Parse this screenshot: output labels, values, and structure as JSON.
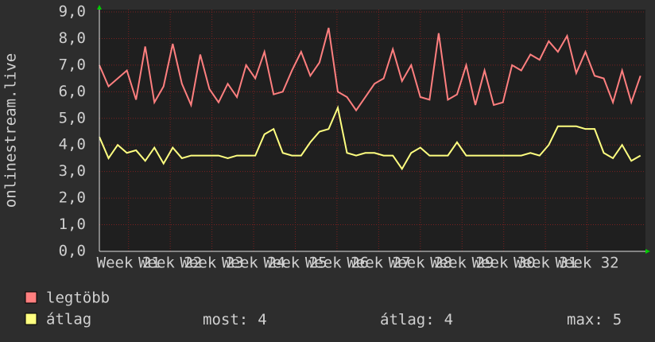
{
  "chart_data": {
    "type": "line",
    "y_label": "onlinestream.live",
    "xlim": [
      20.3,
      33.4
    ],
    "xticks": [
      {
        "value": 21,
        "label": "Week 21"
      },
      {
        "value": 22,
        "label": "Week 22"
      },
      {
        "value": 23,
        "label": "Week 23"
      },
      {
        "value": 24,
        "label": "Week 24"
      },
      {
        "value": 25,
        "label": "Week 25"
      },
      {
        "value": 26,
        "label": "Week 26"
      },
      {
        "value": 27,
        "label": "Week 27"
      },
      {
        "value": 28,
        "label": "Week 28"
      },
      {
        "value": 29,
        "label": "Week 29"
      },
      {
        "value": 30,
        "label": "Week 30"
      },
      {
        "value": 31,
        "label": "Week 31"
      },
      {
        "value": 32,
        "label": "Week 32"
      }
    ],
    "ylim": [
      0,
      9
    ],
    "yticks": [
      {
        "value": 0,
        "label": "0,0"
      },
      {
        "value": 1,
        "label": "1,0"
      },
      {
        "value": 2,
        "label": "2,0"
      },
      {
        "value": 3,
        "label": "3,0"
      },
      {
        "value": 4,
        "label": "4,0"
      },
      {
        "value": 5,
        "label": "5,0"
      },
      {
        "value": 6,
        "label": "6,0"
      },
      {
        "value": 7,
        "label": "7,0"
      },
      {
        "value": 8,
        "label": "8,0"
      },
      {
        "value": 9,
        "label": "9,0"
      }
    ],
    "grid": true,
    "x": [
      20.3,
      20.52,
      20.74,
      20.96,
      21.18,
      21.4,
      21.62,
      21.84,
      22.06,
      22.28,
      22.5,
      22.72,
      22.94,
      23.16,
      23.38,
      23.6,
      23.82,
      24.04,
      24.26,
      24.48,
      24.7,
      24.92,
      25.14,
      25.36,
      25.58,
      25.8,
      26.02,
      26.24,
      26.46,
      26.68,
      26.9,
      27.12,
      27.34,
      27.56,
      27.78,
      28.0,
      28.22,
      28.44,
      28.66,
      28.88,
      29.1,
      29.32,
      29.54,
      29.76,
      29.98,
      30.2,
      30.42,
      30.64,
      30.86,
      31.08,
      31.3,
      31.52,
      31.74,
      31.96,
      32.18,
      32.4,
      32.62,
      32.84,
      33.06,
      33.28
    ],
    "series": [
      {
        "name": "legtöbb",
        "color": "#ff7f7f",
        "values": [
          7.0,
          6.2,
          6.5,
          6.8,
          5.7,
          7.7,
          5.6,
          6.2,
          7.8,
          6.3,
          5.5,
          7.4,
          6.1,
          5.6,
          6.3,
          5.8,
          7.0,
          6.5,
          7.5,
          5.9,
          6.0,
          6.8,
          7.5,
          6.6,
          7.1,
          8.4,
          6.0,
          5.8,
          5.3,
          5.8,
          6.3,
          6.5,
          7.6,
          6.4,
          7.0,
          5.8,
          5.7,
          8.2,
          5.7,
          5.9,
          7.0,
          5.5,
          6.8,
          5.5,
          5.6,
          7.0,
          6.8,
          7.4,
          7.2,
          7.9,
          7.5,
          8.1,
          6.7,
          7.5,
          6.6,
          6.5,
          5.6,
          6.8,
          5.6,
          6.6
        ]
      },
      {
        "name": "átlag",
        "color": "#ffff80",
        "values": [
          4.3,
          3.5,
          4.0,
          3.7,
          3.8,
          3.4,
          3.9,
          3.3,
          3.9,
          3.5,
          3.6,
          3.6,
          3.6,
          3.6,
          3.5,
          3.6,
          3.6,
          3.6,
          4.4,
          4.6,
          3.7,
          3.6,
          3.6,
          4.1,
          4.5,
          4.6,
          5.4,
          3.7,
          3.6,
          3.7,
          3.7,
          3.6,
          3.6,
          3.1,
          3.7,
          3.9,
          3.6,
          3.6,
          3.6,
          4.1,
          3.6,
          3.6,
          3.6,
          3.6,
          3.6,
          3.6,
          3.6,
          3.7,
          3.6,
          4.0,
          4.7,
          4.7,
          4.7,
          4.6,
          4.6,
          3.7,
          3.5,
          4.0,
          3.4,
          3.6
        ]
      }
    ],
    "stats": [
      {
        "label": "most:",
        "value": 4
      },
      {
        "label": "átlag:",
        "value": 4
      },
      {
        "label": "max:",
        "value": 5
      }
    ]
  }
}
